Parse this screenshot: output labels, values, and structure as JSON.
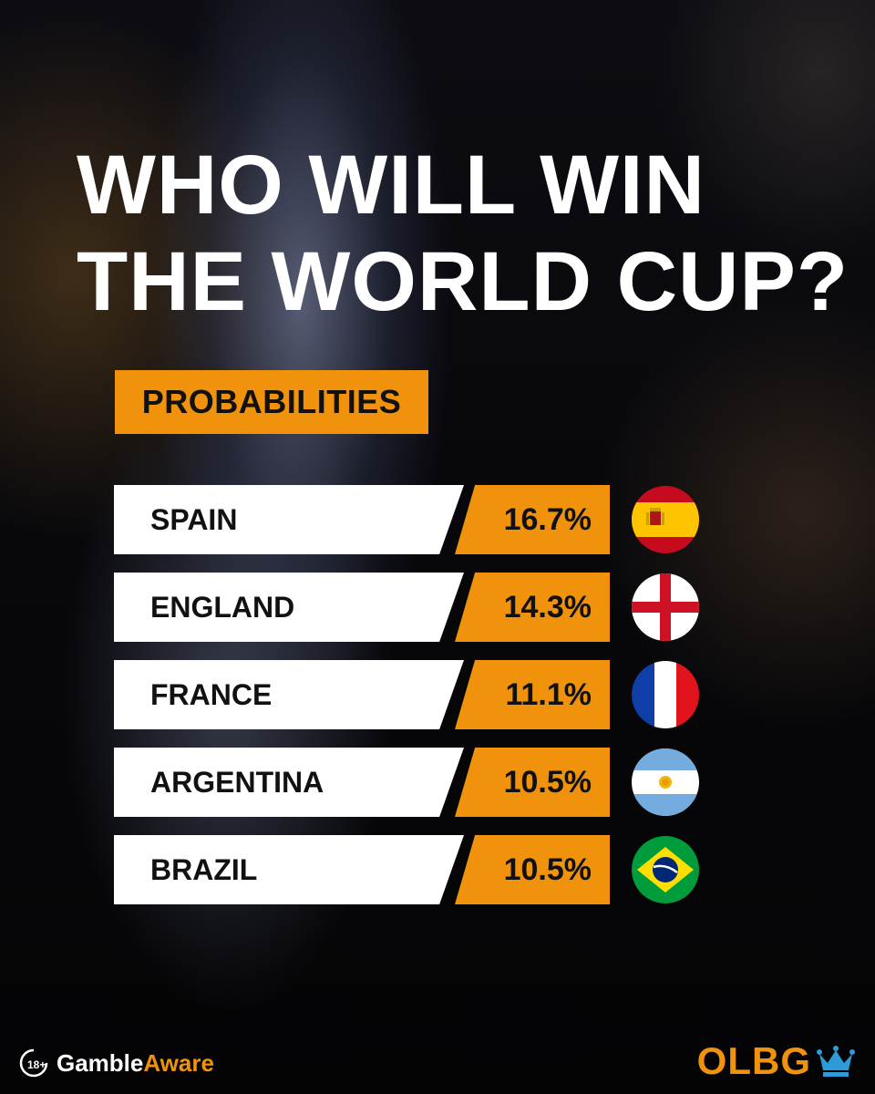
{
  "headline": "WHO WILL WIN\nTHE WORLD CUP?",
  "badge": "PROBABILITIES",
  "colors": {
    "accent": "#f0920b",
    "row_bg": "#ffffff",
    "text_dark": "#111111"
  },
  "rows": [
    {
      "team": "SPAIN",
      "probability": "16.7%",
      "flag": "spain-flag-icon"
    },
    {
      "team": "ENGLAND",
      "probability": "14.3%",
      "flag": "england-flag-icon"
    },
    {
      "team": "FRANCE",
      "probability": "11.1%",
      "flag": "france-flag-icon"
    },
    {
      "team": "ARGENTINA",
      "probability": "10.5%",
      "flag": "argentina-flag-icon"
    },
    {
      "team": "BRAZIL",
      "probability": "10.5%",
      "flag": "brazil-flag-icon"
    }
  ],
  "footer": {
    "age_badge": "18+",
    "gamble": "Gamble",
    "aware": "Aware",
    "brand": "OLBG"
  }
}
